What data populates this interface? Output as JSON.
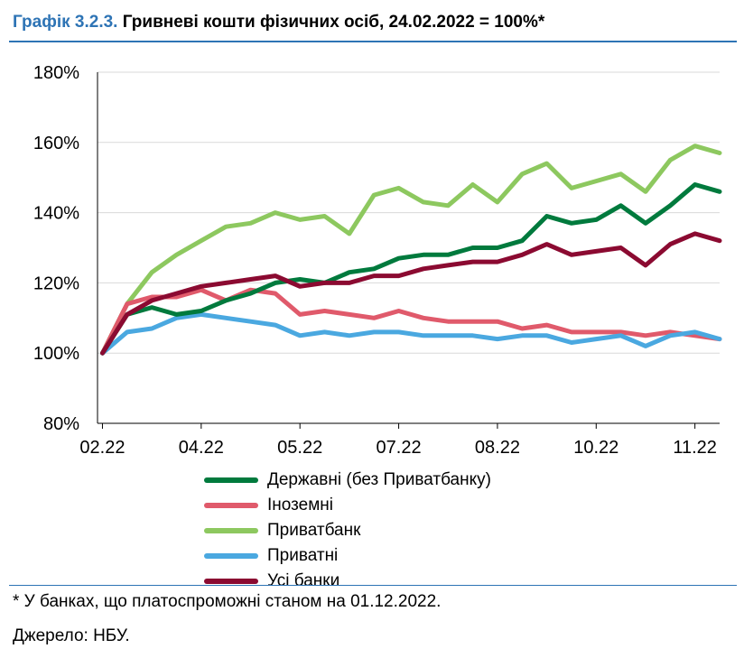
{
  "header": {
    "number": "Графік 3.2.3.",
    "title": "Гривневі кошти фізичних осіб, 24.02.2022 = 100%*"
  },
  "footnote": "* У банках, що платоспроможні станом на 01.12.2022.",
  "source": "Джерело: НБУ.",
  "chart_data": {
    "type": "line",
    "title": "Гривневі кошти фізичних осіб, 24.02.2022 = 100%*",
    "xlabel": "",
    "ylabel": "",
    "ylim": [
      80,
      180
    ],
    "yticks": [
      "80%",
      "100%",
      "120%",
      "140%",
      "160%",
      "180%"
    ],
    "yticks_values": [
      80,
      100,
      120,
      140,
      160,
      180
    ],
    "xticks": [
      "02.22",
      "04.22",
      "05.22",
      "07.22",
      "08.22",
      "10.22",
      "11.22"
    ],
    "xticks_values": [
      0,
      1,
      2,
      3,
      4,
      5,
      6
    ],
    "xlim": [
      -0.05,
      6.25
    ],
    "grid": "horizontal",
    "legend_position": "bottom",
    "x": [
      0,
      0.25,
      0.5,
      0.75,
      1,
      1.25,
      1.5,
      1.75,
      2,
      2.25,
      2.5,
      2.75,
      3,
      3.25,
      3.5,
      3.75,
      4,
      4.25,
      4.5,
      4.75,
      5,
      5.25,
      5.5,
      5.75,
      6,
      6.25
    ],
    "series": [
      {
        "name": "Державні (без Приватбанку)",
        "color": "#007a3d",
        "values": [
          100,
          111,
          113,
          111,
          112,
          115,
          117,
          120,
          121,
          120,
          123,
          124,
          127,
          128,
          128,
          130,
          130,
          132,
          139,
          137,
          138,
          142,
          137,
          142,
          148,
          146
        ]
      },
      {
        "name": "Іноземні",
        "color": "#e05a6b",
        "values": [
          100,
          114,
          116,
          116,
          118,
          115,
          118,
          117,
          111,
          112,
          111,
          110,
          112,
          110,
          109,
          109,
          109,
          107,
          108,
          106,
          106,
          106,
          105,
          106,
          105,
          104
        ]
      },
      {
        "name": "Приватбанк",
        "color": "#8dc85f",
        "values": [
          100,
          114,
          123,
          128,
          132,
          136,
          137,
          140,
          138,
          139,
          134,
          145,
          147,
          143,
          142,
          148,
          143,
          151,
          154,
          147,
          149,
          151,
          146,
          155,
          159,
          157
        ]
      },
      {
        "name": "Приватні",
        "color": "#4aa8e0",
        "values": [
          100,
          106,
          107,
          110,
          111,
          110,
          109,
          108,
          105,
          106,
          105,
          106,
          106,
          105,
          105,
          105,
          104,
          105,
          105,
          103,
          104,
          105,
          102,
          105,
          106,
          104
        ]
      },
      {
        "name": "Усі банки",
        "color": "#8b0a31",
        "values": [
          100,
          111,
          115,
          117,
          119,
          120,
          121,
          122,
          119,
          120,
          120,
          122,
          122,
          124,
          125,
          126,
          126,
          128,
          131,
          128,
          129,
          130,
          125,
          131,
          134,
          132
        ]
      }
    ]
  }
}
